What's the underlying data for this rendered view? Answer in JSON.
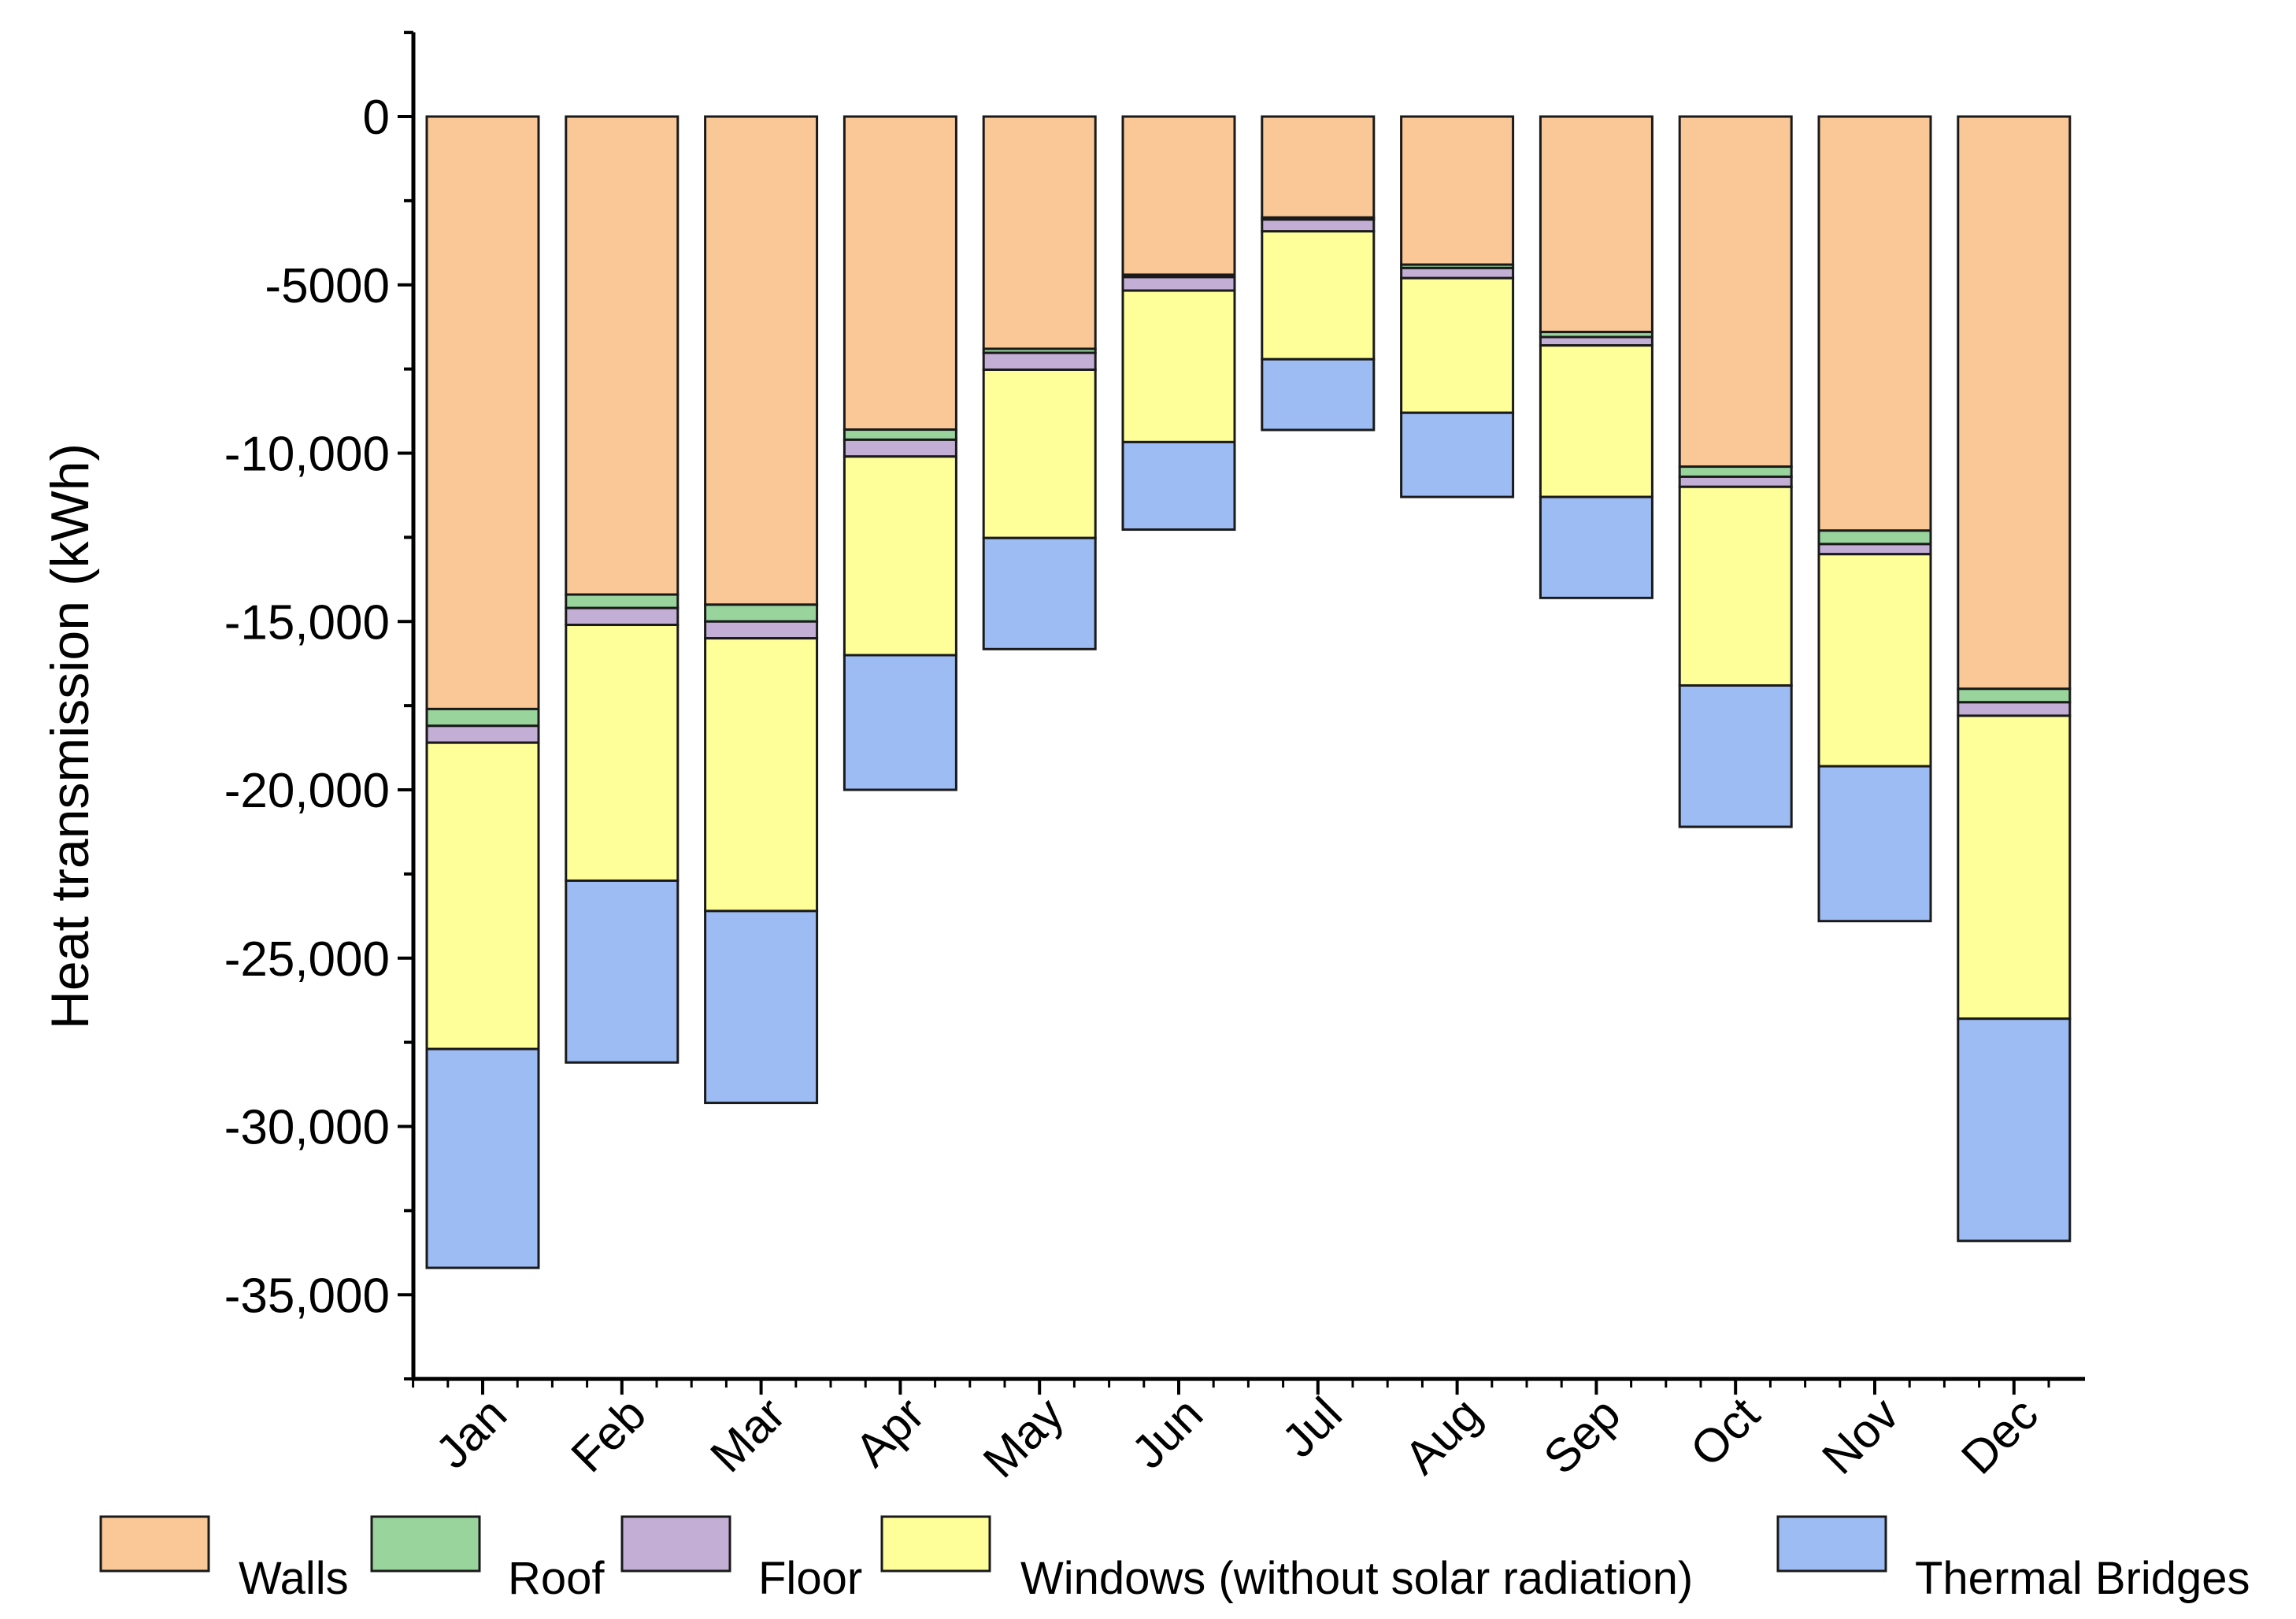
{
  "chart_data": {
    "type": "bar",
    "stacked": true,
    "ylabel": "Heat transmission (kWh)",
    "xlabel": "",
    "ylim": [
      -37500,
      2500
    ],
    "yticks": [
      0,
      -5000,
      -10000,
      -15000,
      -20000,
      -25000,
      -30000,
      -35000
    ],
    "ytick_labels": [
      "0",
      "-5000",
      "-10,000",
      "-15,000",
      "-20,000",
      "-25,000",
      "-30,000",
      "-35,000"
    ],
    "categories": [
      "Jan",
      "Feb",
      "Mar",
      "Apr",
      "May",
      "Jun",
      "Jul",
      "Aug",
      "Sep",
      "Oct",
      "Nov",
      "Dec"
    ],
    "series": [
      {
        "name": "Walls",
        "color": "#FAC896",
        "values": [
          -17600,
          -14200,
          -14500,
          -9300,
          -6900,
          -4700,
          -3000,
          -4400,
          -6400,
          -10400,
          -12300,
          -17000
        ]
      },
      {
        "name": "Roof",
        "color": "#98D49C",
        "values": [
          -500,
          -400,
          -500,
          -300,
          -120,
          -70,
          -60,
          -100,
          -150,
          -300,
          -400,
          -400
        ]
      },
      {
        "name": "Floor",
        "color": "#C3AFD5",
        "values": [
          -500,
          -500,
          -500,
          -500,
          -500,
          -400,
          -350,
          -300,
          -250,
          -300,
          -300,
          -400
        ]
      },
      {
        "name": "Windows (without solar radiation)",
        "color": "#FFFF9A",
        "values": [
          -9100,
          -7600,
          -8100,
          -5900,
          -5000,
          -4500,
          -3800,
          -4000,
          -4500,
          -5900,
          -6300,
          -9000
        ]
      },
      {
        "name": "Thermal Bridges",
        "color": "#9DBCF3",
        "values": [
          -6500,
          -5400,
          -5700,
          -4000,
          -3300,
          -2600,
          -2100,
          -2500,
          -3000,
          -4200,
          -4600,
          -6600
        ]
      }
    ],
    "legend_position": "bottom"
  }
}
